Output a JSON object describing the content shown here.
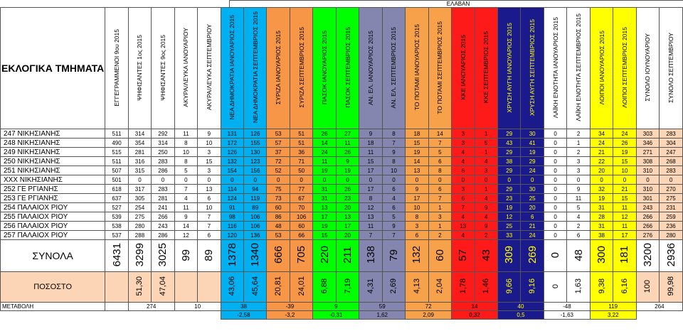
{
  "title": "ΕΛΑΒΑΝ",
  "corner_label": "ΕΚΛΟΓΙΚΑ ΤΜΗΜΑΤΑ",
  "columns": [
    {
      "label": "ΕΓΓΕΓΡΑΜΜΕΝΟΙ 9ου 2015",
      "bg": "#ffffff",
      "fg": "#000000"
    },
    {
      "label": "ΨΗΦΙΣΑΝΤΕΣ 1ος 2015",
      "bg": "#ffffff",
      "fg": "#000000"
    },
    {
      "label": "ΨΗΦΙΣΑΝΤΕΣ 9ος 2015",
      "bg": "#ffffff",
      "fg": "#000000"
    },
    {
      "label": "ΑΚΥΡΑ/ΛΕΥΚΑ ΙΑΝΟΥΑΡΙΟΥ",
      "bg": "#ffffff",
      "fg": "#000000"
    },
    {
      "label": "ΑΚΥΡΑ/ΛΕΥΚΑ ΣΕΠΤΕΜΒΡΙΟΥ",
      "bg": "#ffffff",
      "fg": "#000000"
    },
    {
      "label": "ΝΕΑ ΔΗΜΟΚΡΑΤΙΑ ΙΑΝΟΥΑΡΙΟΣ 2015",
      "bg": "#00b0f0",
      "fg": "#000000"
    },
    {
      "label": "ΝΕΑ ΔΗΜΟΚΡΑΤΙΑ ΣΕΠΤΕΜΒΡΙΟΣ 2015",
      "bg": "#00b0f0",
      "fg": "#000000"
    },
    {
      "label": "ΣΥΡΙΖΑ ΙΑΝΟΥΑΡΙΟΣ 2015",
      "bg": "#f79646",
      "fg": "#000000"
    },
    {
      "label": "ΣΥΡΙΖΑ ΣΕΠΤΕΜΒΡΙΟΣ 2015",
      "bg": "#f79646",
      "fg": "#000000"
    },
    {
      "label": "ΠΑΣΟΚ ΙΑΝΟΥΑΡΙΟΣ 2015",
      "bg": "#00ff00",
      "fg": "#000000"
    },
    {
      "label": "ΠΑΣΟΚ ΣΕΠΤΕΜΒΡΙΟΣ 2015",
      "bg": "#00ff00",
      "fg": "#000000"
    },
    {
      "label": "ΑΝ. ΕΛ. ΙΑΝΟΥΑΡΙΟΣ 2015",
      "bg": "#8486b0",
      "fg": "#000000"
    },
    {
      "label": "ΑΝ. ΕΛ. ΣΕΠΤΕΜΒΡΙΟΣ 2015",
      "bg": "#8486b0",
      "fg": "#000000"
    },
    {
      "label": "ΤΟ ΠΟΤΑΜΙ ΙΑΝΟΥΑΡΙΟΣ 2015",
      "bg": "#f7a24a",
      "fg": "#000000"
    },
    {
      "label": "ΤΟ ΠΟΤΑΜΙ ΣΕΠΤΕΜΒΡΙΟΣ 2015",
      "bg": "#f7a24a",
      "fg": "#000000"
    },
    {
      "label": "ΚΚΕ ΙΑΝΟΥΑΡΙΟΣ 2015",
      "bg": "#ff1a1a",
      "fg": "#000000"
    },
    {
      "label": "ΚΚΕ ΣΕΠΤΕΜΒΡΙΟΣ 2015",
      "bg": "#ff1a1a",
      "fg": "#000000"
    },
    {
      "label": "ΧΡΥΣΗ ΑΥΓΗ ΙΑΝΟΥΑΡΙΟΣ 2015",
      "bg": "#1a1a8c",
      "fg": "#ffff00"
    },
    {
      "label": "ΧΡΥΣΗ ΑΥΓΗ ΣΕΠΤΕΜΒΡΙΟΣ 2015",
      "bg": "#1a1a8c",
      "fg": "#ffff00"
    },
    {
      "label": "ΛΑΪΚΗ ΕΝΟΤΗΤΑ ΙΑΝΟΥΑΡΙΟΣ 2015",
      "bg": "#ffffff",
      "fg": "#000000"
    },
    {
      "label": "ΛΑΪΚΗ ΕΝΟΤΗΤΑ ΣΕΠΤΕΜΒΡΙΟΣ 2015",
      "bg": "#ffffff",
      "fg": "#000000"
    },
    {
      "label": "ΛΟΙΠΟΙ ΙΑΝΟΥΑΡΙΟΣ 2015",
      "bg": "#ffff00",
      "fg": "#000000"
    },
    {
      "label": "ΛΟΙΠΟΙ ΣΕΠΤΕΜΒΡΙΟΣ 2015",
      "bg": "#ffff00",
      "fg": "#000000"
    },
    {
      "label": "ΣΥΝΟΛΟ ΙΟΥΝΟΥΑΡΙΟΥ",
      "bg": "#ffffff",
      "fg": "#000000"
    },
    {
      "label": "ΣΥΝΟΛΟ ΣΕΠΤΕΜΒΡΙΟΥ",
      "bg": "#ffffff",
      "fg": "#000000"
    }
  ],
  "rows": [
    {
      "name": "247 ΝΙΚΗΣΙΑΝΗΣ",
      "values": [
        "511",
        "314",
        "292",
        "11",
        "9",
        "131",
        "126",
        "53",
        "51",
        "26",
        "27",
        "9",
        "8",
        "18",
        "14",
        "3",
        "1",
        "29",
        "30",
        "0",
        "2",
        "34",
        "24",
        "303",
        "283"
      ]
    },
    {
      "name": "248 ΝΙΚΗΣΙΑΝΗΣ",
      "values": [
        "490",
        "354",
        "314",
        "8",
        "10",
        "172",
        "155",
        "57",
        "51",
        "14",
        "11",
        "18",
        "7",
        "15",
        "7",
        "3",
        "5",
        "43",
        "41",
        "0",
        "1",
        "24",
        "26",
        "346",
        "304"
      ]
    },
    {
      "name": "249 ΝΙΚΗΣΙΑΝΗΣ",
      "values": [
        "515",
        "281",
        "250",
        "10",
        "3",
        "126",
        "130",
        "37",
        "36",
        "24",
        "26",
        "11",
        "9",
        "19",
        "5",
        "4",
        "1",
        "29",
        "19",
        "0",
        "2",
        "21",
        "19",
        "271",
        "247"
      ]
    },
    {
      "name": "250 ΝΙΚΗΣΙΑΝΗΣ",
      "values": [
        "511",
        "316",
        "283",
        "8",
        "15",
        "132",
        "123",
        "72",
        "71",
        "11",
        "9",
        "15",
        "8",
        "14",
        "6",
        "4",
        "4",
        "38",
        "29",
        "0",
        "3",
        "22",
        "15",
        "308",
        "268"
      ]
    },
    {
      "name": "251 ΝΙΚΗΣΙΑΝΗΣ",
      "values": [
        "507",
        "315",
        "286",
        "5",
        "3",
        "154",
        "156",
        "52",
        "50",
        "19",
        "19",
        "17",
        "10",
        "13",
        "8",
        "6",
        "3",
        "29",
        "24",
        "0",
        "3",
        "20",
        "10",
        "310",
        "283"
      ]
    },
    {
      "name": "XXX ΝΙΚΗΣΙΑΝΗΣ",
      "values": [
        "501",
        "0",
        "0",
        "0",
        "0",
        "0",
        "0",
        "0",
        "0",
        "0",
        "0",
        "0",
        "0",
        "0",
        "0",
        "0",
        "0",
        "0",
        "0",
        "0",
        "0",
        "0",
        "0",
        "0",
        "0"
      ]
    },
    {
      "name": "252 ΓΕ   ΡΓΙΑΝΗΣ",
      "values": [
        "618",
        "317",
        "283",
        "7",
        "13",
        "114",
        "94",
        "75",
        "77",
        "31",
        "26",
        "17",
        "6",
        "9",
        "6",
        "3",
        "1",
        "29",
        "30",
        "0",
        "9",
        "32",
        "21",
        "310",
        "270"
      ]
    },
    {
      "name": "253 ΓΕ   ΡΓΙΑΝΗΣ",
      "values": [
        "637",
        "305",
        "281",
        "4",
        "6",
        "124",
        "119",
        "73",
        "67",
        "31",
        "23",
        "8",
        "4",
        "17",
        "7",
        "6",
        "4",
        "23",
        "25",
        "0",
        "11",
        "19",
        "15",
        "301",
        "275"
      ]
    },
    {
      "name": "254 ΠΑΛΑΙΟΧ   ΡΙΟΥ",
      "values": [
        "527",
        "254",
        "241",
        "11",
        "10",
        "91",
        "89",
        "60",
        "70",
        "13",
        "20",
        "12",
        "6",
        "10",
        "1",
        "7",
        "9",
        "19",
        "20",
        "0",
        "5",
        "31",
        "11",
        "243",
        "231"
      ]
    },
    {
      "name": "255 ΠΑΛΑΙΟΧ   ΡΙΟΥ",
      "values": [
        "539",
        "275",
        "266",
        "9",
        "7",
        "98",
        "106",
        "86",
        "106",
        "17",
        "13",
        "13",
        "5",
        "8",
        "3",
        "4",
        "4",
        "12",
        "6",
        "0",
        "4",
        "28",
        "12",
        "266",
        "259"
      ]
    },
    {
      "name": "256 ΠΑΛΑΙΟΧ   ΡΙΟΥ",
      "values": [
        "538",
        "280",
        "243",
        "14",
        "7",
        "116",
        "106",
        "48",
        "60",
        "19",
        "17",
        "11",
        "9",
        "3",
        "1",
        "13",
        "9",
        "25",
        "21",
        "0",
        "2",
        "31",
        "11",
        "266",
        "236"
      ]
    },
    {
      "name": "257 ΠΑΛΑΙΟΧ   ΡΙΟΥ",
      "values": [
        "537",
        "288",
        "286",
        "12",
        "6",
        "120",
        "136",
        "53",
        "66",
        "15",
        "20",
        "7",
        "7",
        "6",
        "2",
        "4",
        "2",
        "33",
        "24",
        "0",
        "6",
        "38",
        "17",
        "276",
        "280"
      ]
    }
  ],
  "totals": {
    "label": "ΣΥΝΟΛΑ",
    "values": [
      "6431",
      "3299",
      "3025",
      "99",
      "89",
      "1378",
      "1340",
      "666",
      "705",
      "220",
      "211",
      "138",
      "79",
      "132",
      "60",
      "57",
      "43",
      "309",
      "269",
      "0",
      "48",
      "300",
      "181",
      "3200",
      "2936"
    ]
  },
  "percent": {
    "label": "ΠΟΣΟΣΤΟ",
    "values": [
      "",
      "51,30",
      "47,04",
      "",
      "",
      "43,06",
      "45,64",
      "20,81",
      "24,01",
      "6,88",
      "7,19",
      "4,31",
      "2,69",
      "4,13",
      "2,04",
      "1,78",
      "1,46",
      "9,66",
      "9,16",
      "0",
      "1,63",
      "9,38",
      "6,16",
      "100",
      "99,98"
    ]
  },
  "change": {
    "label": "ΜΕΤΑΒΟΛΗ",
    "values": [
      "274",
      "10",
      "38",
      "-39",
      "9",
      "59",
      "72",
      "14",
      "40",
      "-48",
      "119",
      "264"
    ],
    "pct": [
      "-2,58",
      "-3,2",
      "-0,31",
      "1,62",
      "2,09",
      "0,32",
      "0,5",
      "-1,63",
      "3,22"
    ]
  }
}
